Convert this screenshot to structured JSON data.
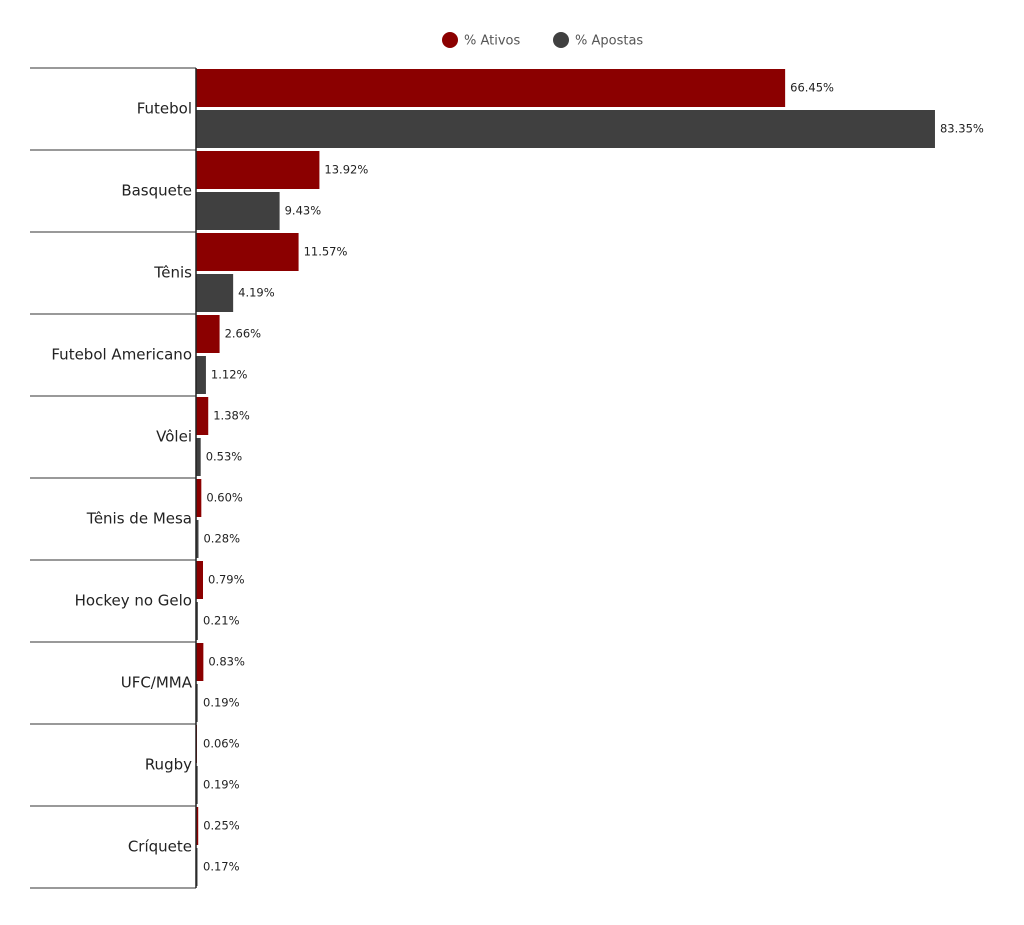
{
  "chart_data": {
    "type": "bar",
    "orientation": "horizontal",
    "categories": [
      "Futebol",
      "Basquete",
      "Tênis",
      "Futebol Americano",
      "Vôlei",
      "Tênis de Mesa",
      "Hockey no Gelo",
      "UFC/MMA",
      "Rugby",
      "Críquete"
    ],
    "series": [
      {
        "name": "% Ativos",
        "color": "#8b0000",
        "values": [
          66.45,
          13.92,
          11.57,
          2.66,
          1.38,
          0.6,
          0.79,
          0.83,
          0.06,
          0.25
        ],
        "value_labels": [
          "66.45%",
          "13.92%",
          "11.57%",
          "2.66%",
          "1.38%",
          "0.60%",
          "0.79%",
          "0.83%",
          "0.06%",
          "0.25%"
        ]
      },
      {
        "name": "% Apostas",
        "color": "#404040",
        "values": [
          83.35,
          9.43,
          4.19,
          1.12,
          0.53,
          0.28,
          0.21,
          0.19,
          0.19,
          0.17
        ],
        "value_labels": [
          "83.35%",
          "9.43%",
          "4.19%",
          "1.12%",
          "0.53%",
          "0.28%",
          "0.21%",
          "0.19%",
          "0.19%",
          "0.17%"
        ]
      }
    ],
    "xlim": [
      0,
      85
    ],
    "legend": "top"
  }
}
